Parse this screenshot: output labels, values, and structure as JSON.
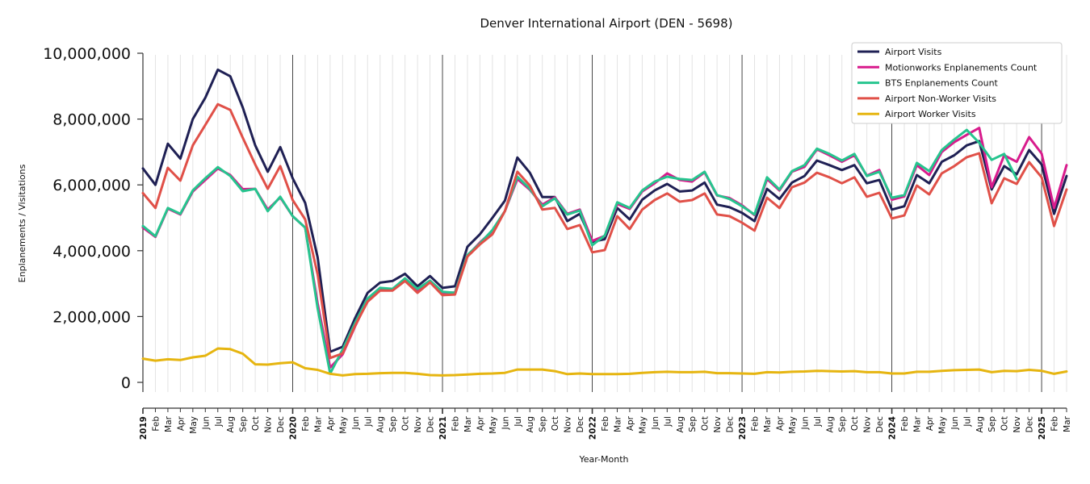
{
  "chart_data": {
    "type": "line",
    "title": "Denver International Airport (DEN - 5698)",
    "xlabel": "Year-Month",
    "ylabel": "Enplanements / Visitations",
    "ylim": [
      0,
      10000000
    ],
    "yticks": [
      0,
      2000000,
      4000000,
      6000000,
      8000000,
      10000000
    ],
    "ytick_labels": [
      "0",
      "2,000,000",
      "4,000,000",
      "6,000,000",
      "8,000,000",
      "10,000,000"
    ],
    "grid": "vertical monthly gridlines, darker lines at each January",
    "legend_position": "top-right",
    "x": [
      "2019",
      "Feb",
      "Mar",
      "Apr",
      "May",
      "Jun",
      "Jul",
      "Aug",
      "Sep",
      "Oct",
      "Nov",
      "Dec",
      "2020",
      "Feb",
      "Mar",
      "Apr",
      "May",
      "Jun",
      "Jul",
      "Aug",
      "Sep",
      "Oct",
      "Nov",
      "Dec",
      "2021",
      "Feb",
      "Mar",
      "Apr",
      "May",
      "Jun",
      "Jul",
      "Aug",
      "Sep",
      "Oct",
      "Nov",
      "Dec",
      "2022",
      "Feb",
      "Mar",
      "Apr",
      "May",
      "Jun",
      "Jul",
      "Aug",
      "Sep",
      "Oct",
      "Nov",
      "Dec",
      "2023",
      "Feb",
      "Mar",
      "Apr",
      "May",
      "Jun",
      "Jul",
      "Aug",
      "Sep",
      "Oct",
      "Nov",
      "Dec",
      "2024",
      "Feb",
      "Mar",
      "Apr",
      "May",
      "Jun",
      "Jul",
      "Aug",
      "Sep",
      "Oct",
      "Nov",
      "Dec",
      "2025",
      "Feb",
      "Mar"
    ],
    "series": [
      {
        "name": "Airport Visits",
        "color": "#1f2054",
        "values": [
          6500000,
          6000000,
          7250000,
          6800000,
          8000000,
          8650000,
          9500000,
          9300000,
          8350000,
          7200000,
          6400000,
          7150000,
          6200000,
          5450000,
          3800000,
          930000,
          1080000,
          1950000,
          2720000,
          3030000,
          3080000,
          3300000,
          2920000,
          3230000,
          2870000,
          2920000,
          4120000,
          4500000,
          5000000,
          5520000,
          6830000,
          6370000,
          5630000,
          5630000,
          4900000,
          5120000,
          4270000,
          4350000,
          5300000,
          4950000,
          5550000,
          5830000,
          6030000,
          5800000,
          5830000,
          6070000,
          5400000,
          5320000,
          5150000,
          4900000,
          5880000,
          5570000,
          6070000,
          6270000,
          6740000,
          6600000,
          6450000,
          6600000,
          6050000,
          6150000,
          5250000,
          5350000,
          6300000,
          6050000,
          6700000,
          6900000,
          7200000,
          7330000,
          5860000,
          6570000,
          6320000,
          7060000,
          6620000,
          5120000,
          6270000
        ]
      },
      {
        "name": "Motionworks Enplanements Count",
        "color": "#d81b8c",
        "values": [
          4700000,
          4420000,
          5280000,
          5100000,
          5800000,
          6150000,
          6500000,
          6300000,
          5870000,
          5880000,
          5250000,
          5620000,
          5050000,
          4700000,
          2400000,
          450000,
          850000,
          1700000,
          2500000,
          2830000,
          2800000,
          3100000,
          2800000,
          3070000,
          2720000,
          2730000,
          3850000,
          4250000,
          4600000,
          5200000,
          6180000,
          5850000,
          5400000,
          5620000,
          5120000,
          5250000,
          4300000,
          4450000,
          5420000,
          5270000,
          5800000,
          6050000,
          6350000,
          6150000,
          6100000,
          6380000,
          5680000,
          5600000,
          5380000,
          5080000,
          6180000,
          5830000,
          6400000,
          6550000,
          7080000,
          6900000,
          6700000,
          6900000,
          6280000,
          6450000,
          5550000,
          5650000,
          6600000,
          6300000,
          7000000,
          7300000,
          7520000,
          7730000,
          5930000,
          6900000,
          6700000,
          7450000,
          6950000,
          5300000,
          6600000
        ]
      },
      {
        "name": "BTS Enplanements Count",
        "color": "#26c48e",
        "values": [
          4750000,
          4440000,
          5300000,
          5120000,
          5830000,
          6200000,
          6540000,
          6270000,
          5810000,
          5880000,
          5200000,
          5640000,
          5050000,
          4700000,
          2250000,
          270000,
          1000000,
          1810000,
          2550000,
          2870000,
          2840000,
          3160000,
          2840000,
          3090000,
          2750000,
          2720000,
          3870000,
          4220000,
          4630000,
          5200000,
          6250000,
          5880000,
          5350000,
          5590000,
          5100000,
          5220000,
          4170000,
          4460000,
          5470000,
          5300000,
          5830000,
          6100000,
          6250000,
          6180000,
          6150000,
          6400000,
          5690000,
          5570000,
          5350000,
          5100000,
          6230000,
          5860000,
          6420000,
          6600000,
          7100000,
          6940000,
          6740000,
          6940000,
          6270000,
          6400000,
          5610000,
          5690000,
          6670000,
          6420000,
          7060000,
          7380000,
          7670000,
          7280000,
          6760000,
          6940000,
          6180000,
          null,
          null,
          null,
          null
        ]
      },
      {
        "name": "Airport Non-Worker Visits",
        "color": "#e05048",
        "values": [
          5750000,
          5300000,
          6520000,
          6130000,
          7200000,
          7820000,
          8450000,
          8280000,
          7430000,
          6620000,
          5880000,
          6570000,
          5540000,
          4950000,
          3280000,
          740000,
          880000,
          1720000,
          2450000,
          2790000,
          2790000,
          3080000,
          2720000,
          3040000,
          2650000,
          2670000,
          3820000,
          4190000,
          4500000,
          5200000,
          6400000,
          5980000,
          5250000,
          5300000,
          4660000,
          4780000,
          3950000,
          4020000,
          5050000,
          4660000,
          5250000,
          5540000,
          5740000,
          5490000,
          5540000,
          5740000,
          5100000,
          5050000,
          4850000,
          4610000,
          5610000,
          5300000,
          5930000,
          6070000,
          6370000,
          6230000,
          6050000,
          6230000,
          5640000,
          5760000,
          4980000,
          5070000,
          5980000,
          5710000,
          6350000,
          6570000,
          6840000,
          6960000,
          5440000,
          6200000,
          6030000,
          6690000,
          6230000,
          4750000,
          5860000
        ]
      },
      {
        "name": "Airport Worker Visits",
        "color": "#e6b510",
        "values": [
          720000,
          660000,
          700000,
          680000,
          760000,
          810000,
          1030000,
          1010000,
          870000,
          550000,
          540000,
          580000,
          610000,
          430000,
          380000,
          260000,
          210000,
          250000,
          260000,
          280000,
          290000,
          290000,
          260000,
          220000,
          210000,
          220000,
          240000,
          260000,
          270000,
          290000,
          390000,
          390000,
          390000,
          340000,
          250000,
          270000,
          250000,
          250000,
          250000,
          260000,
          290000,
          310000,
          320000,
          310000,
          310000,
          320000,
          280000,
          280000,
          270000,
          260000,
          310000,
          300000,
          320000,
          330000,
          350000,
          340000,
          330000,
          340000,
          310000,
          310000,
          270000,
          270000,
          320000,
          320000,
          350000,
          370000,
          380000,
          390000,
          310000,
          350000,
          340000,
          380000,
          350000,
          260000,
          330000
        ]
      }
    ]
  }
}
